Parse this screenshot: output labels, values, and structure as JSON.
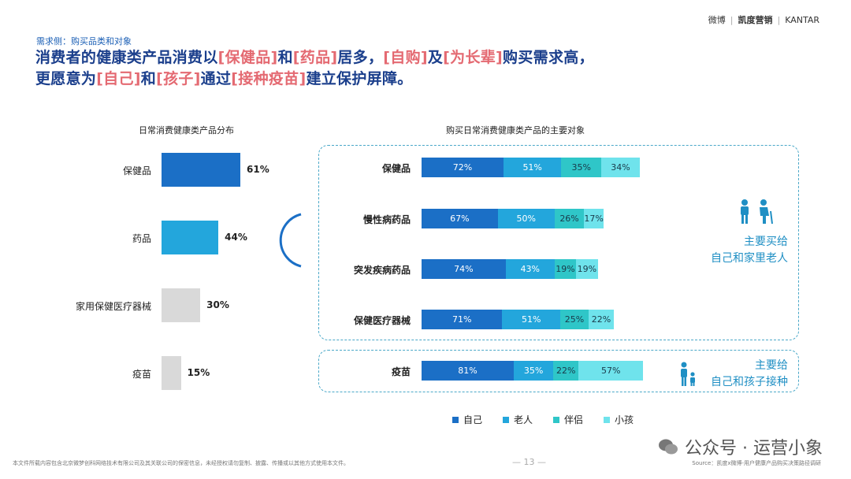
{
  "header": {
    "brand_weibo": "微博",
    "brand_kaidu": "凯度营销",
    "brand_kantar": "KANTAR",
    "subtitle": "需求侧：购买品类和对象",
    "headline_line1": [
      {
        "t": "消费者的健康类产品消费以",
        "hl": false
      },
      {
        "t": "[保健品]",
        "hl": true
      },
      {
        "t": "和",
        "hl": false
      },
      {
        "t": "[药品]",
        "hl": true
      },
      {
        "t": "居多，",
        "hl": false
      },
      {
        "t": "[自购]",
        "hl": true
      },
      {
        "t": "及",
        "hl": false
      },
      {
        "t": "[为长辈]",
        "hl": true
      },
      {
        "t": "购买需求高，",
        "hl": false
      }
    ],
    "headline_line2": [
      {
        "t": "更愿意为",
        "hl": false
      },
      {
        "t": "[自己]",
        "hl": true
      },
      {
        "t": "和",
        "hl": false
      },
      {
        "t": "[孩子]",
        "hl": true
      },
      {
        "t": "通过",
        "hl": false
      },
      {
        "t": "[接种疫苗]",
        "hl": true
      },
      {
        "t": "建立保护屏障。",
        "hl": false
      }
    ]
  },
  "colors": {
    "blue_dark": "#1b6fc6",
    "blue_mid": "#23a6dc",
    "teal": "#2fc6c8",
    "light_cyan": "#6fe3ec",
    "gray": "#d9d9d9",
    "headline": "#1b3f8c",
    "highlight": "#e46a72",
    "callout": "#1f8fc4"
  },
  "chart_data": [
    {
      "type": "bar",
      "title": "日常消费健康类产品分布",
      "categories": [
        "保健品",
        "药品",
        "家用保健医疗器械",
        "疫苗"
      ],
      "values": [
        61,
        44,
        30,
        15
      ],
      "value_labels": [
        "61%",
        "44%",
        "30%",
        "15%"
      ]
    },
    {
      "type": "bar",
      "stacked": true,
      "title": "购买日常消费健康类产品的主要对象",
      "categories": [
        "保健品",
        "慢性病药品",
        "突发疾病药品",
        "保健医疗器械",
        "疫苗"
      ],
      "series": [
        {
          "name": "自己",
          "values": [
            72,
            67,
            74,
            71,
            81
          ]
        },
        {
          "name": "老人",
          "values": [
            51,
            50,
            43,
            51,
            35
          ]
        },
        {
          "name": "伴侣",
          "values": [
            35,
            26,
            19,
            25,
            22
          ]
        },
        {
          "name": "小孩",
          "values": [
            34,
            17,
            19,
            22,
            57
          ]
        }
      ],
      "legend": [
        "自己",
        "老人",
        "伴侣",
        "小孩"
      ],
      "legend_position": "bottom"
    }
  ],
  "callouts": {
    "elderly_line1": "主要买给",
    "elderly_line2": "自己和家里老人",
    "children_line1": "主要给",
    "children_line2": "自己和孩子接种"
  },
  "footer": {
    "disclaimer": "本文件所载内容包含北京微梦创科网络技术有限公司及其关联公司的保密信息，未经授权请勿复制、披露、传播或以其他方式使用本文件。",
    "page_number": "— 13 —",
    "source": "Source：凯度x微博-用户健康产品购买决策路径调研",
    "watermark": "公众号 · 运营小象"
  }
}
